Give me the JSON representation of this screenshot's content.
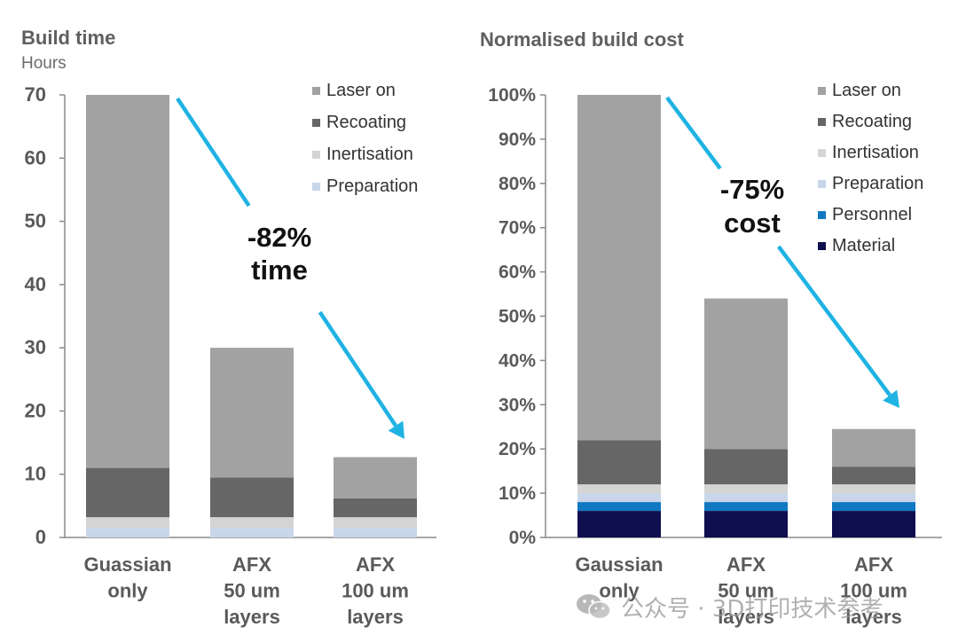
{
  "chart_data": [
    {
      "type": "bar",
      "stacked": true,
      "title": "Build time",
      "subtitle": "Hours",
      "categories": [
        [
          "Guassian",
          "only"
        ],
        [
          "AFX",
          "50 um",
          "layers"
        ],
        [
          "AFX",
          "100 um",
          "layers"
        ]
      ],
      "ylim": [
        0,
        70
      ],
      "yticks": [
        0,
        10,
        20,
        30,
        40,
        50,
        60,
        70
      ],
      "ytick_labels": [
        "0",
        "10",
        "20",
        "30",
        "40",
        "50",
        "60",
        "70"
      ],
      "grid": false,
      "legend_position": "top-right",
      "series": [
        {
          "name": "Preparation",
          "color": "#c9d6ea",
          "values": [
            1.5,
            1.5,
            1.5
          ]
        },
        {
          "name": "Inertisation",
          "color": "#d4d4d4",
          "values": [
            1.7,
            1.7,
            1.7
          ]
        },
        {
          "name": "Recoating",
          "color": "#666666",
          "values": [
            7.8,
            6.3,
            3.0
          ]
        },
        {
          "name": "Laser on",
          "color": "#a2a2a2",
          "values": [
            59.0,
            20.5,
            6.5
          ]
        }
      ],
      "annotation": {
        "lines": [
          "-82%",
          "time"
        ],
        "color": "#1fb3e3"
      }
    },
    {
      "type": "bar",
      "stacked": true,
      "title": "Normalised build cost",
      "subtitle": "",
      "categories": [
        [
          "Gaussian",
          "only"
        ],
        [
          "AFX",
          "50 um",
          "layers"
        ],
        [
          "AFX",
          "100 um",
          "layers"
        ]
      ],
      "ylim": [
        0,
        100
      ],
      "yticks": [
        0,
        10,
        20,
        30,
        40,
        50,
        60,
        70,
        80,
        90,
        100
      ],
      "ytick_labels": [
        "0%",
        "10%",
        "20%",
        "30%",
        "40%",
        "50%",
        "60%",
        "70%",
        "80%",
        "90%",
        "100%"
      ],
      "grid": false,
      "legend_position": "top-right",
      "series": [
        {
          "name": "Material",
          "color": "#0f0f4f",
          "values": [
            6,
            6,
            6
          ]
        },
        {
          "name": "Personnel",
          "color": "#1078c0",
          "values": [
            2,
            2,
            2
          ]
        },
        {
          "name": "Preparation",
          "color": "#c9d6ea",
          "values": [
            2,
            2,
            2
          ]
        },
        {
          "name": "Inertisation",
          "color": "#d4d4d4",
          "values": [
            2,
            2,
            2
          ]
        },
        {
          "name": "Recoating",
          "color": "#666666",
          "values": [
            10,
            8,
            4
          ]
        },
        {
          "name": "Laser on",
          "color": "#a2a2a2",
          "values": [
            78,
            34,
            8.5
          ]
        }
      ],
      "annotation": {
        "lines": [
          "-75%",
          "cost"
        ],
        "color": "#1fb3e3"
      }
    }
  ],
  "watermark": {
    "text": "公众号 · 3D打印技术参考",
    "icon": "wechat-icon"
  }
}
